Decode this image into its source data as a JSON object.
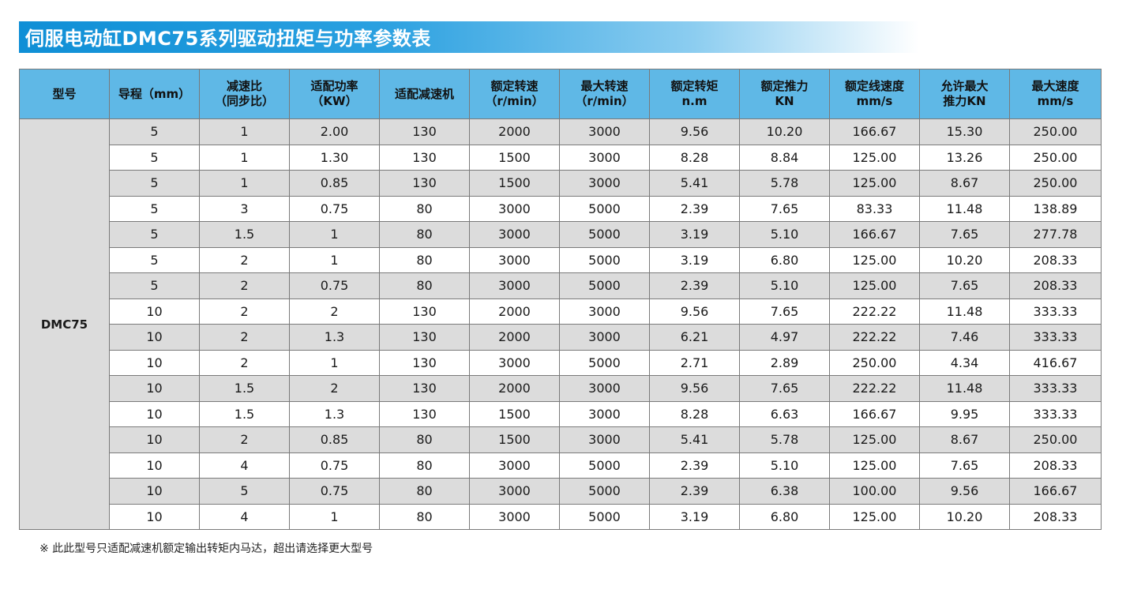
{
  "title": "伺服电动缸DMC75系列驱动扭矩与功率参数表",
  "headers": [
    [
      "型号"
    ],
    [
      "导程（mm）"
    ],
    [
      "减速比",
      "（同步比）"
    ],
    [
      "适配功率",
      "（KW）"
    ],
    [
      "适配减速机"
    ],
    [
      "额定转速",
      "（r/min）"
    ],
    [
      "最大转速",
      "（r/min）"
    ],
    [
      "额定转矩",
      "n.m"
    ],
    [
      "额定推力",
      "KN"
    ],
    [
      "额定线速度",
      "mm/s"
    ],
    [
      "允许最大",
      "推力KN"
    ],
    [
      "最大速度",
      "mm/s"
    ]
  ],
  "model": "DMC75",
  "rows": [
    [
      "5",
      "1",
      "2.00",
      "130",
      "2000",
      "3000",
      "9.56",
      "10.20",
      "166.67",
      "15.30",
      "250.00"
    ],
    [
      "5",
      "1",
      "1.30",
      "130",
      "1500",
      "3000",
      "8.28",
      "8.84",
      "125.00",
      "13.26",
      "250.00"
    ],
    [
      "5",
      "1",
      "0.85",
      "130",
      "1500",
      "3000",
      "5.41",
      "5.78",
      "125.00",
      "8.67",
      "250.00"
    ],
    [
      "5",
      "3",
      "0.75",
      "80",
      "3000",
      "5000",
      "2.39",
      "7.65",
      "83.33",
      "11.48",
      "138.89"
    ],
    [
      "5",
      "1.5",
      "1",
      "80",
      "3000",
      "5000",
      "3.19",
      "5.10",
      "166.67",
      "7.65",
      "277.78"
    ],
    [
      "5",
      "2",
      "1",
      "80",
      "3000",
      "5000",
      "3.19",
      "6.80",
      "125.00",
      "10.20",
      "208.33"
    ],
    [
      "5",
      "2",
      "0.75",
      "80",
      "3000",
      "5000",
      "2.39",
      "5.10",
      "125.00",
      "7.65",
      "208.33"
    ],
    [
      "10",
      "2",
      "2",
      "130",
      "2000",
      "3000",
      "9.56",
      "7.65",
      "222.22",
      "11.48",
      "333.33"
    ],
    [
      "10",
      "2",
      "1.3",
      "130",
      "2000",
      "3000",
      "6.21",
      "4.97",
      "222.22",
      "7.46",
      "333.33"
    ],
    [
      "10",
      "2",
      "1",
      "130",
      "3000",
      "5000",
      "2.71",
      "2.89",
      "250.00",
      "4.34",
      "416.67"
    ],
    [
      "10",
      "1.5",
      "2",
      "130",
      "2000",
      "3000",
      "9.56",
      "7.65",
      "222.22",
      "11.48",
      "333.33"
    ],
    [
      "10",
      "1.5",
      "1.3",
      "130",
      "1500",
      "3000",
      "8.28",
      "6.63",
      "166.67",
      "9.95",
      "333.33"
    ],
    [
      "10",
      "2",
      "0.85",
      "80",
      "1500",
      "3000",
      "5.41",
      "5.78",
      "125.00",
      "8.67",
      "250.00"
    ],
    [
      "10",
      "4",
      "0.75",
      "80",
      "3000",
      "5000",
      "2.39",
      "5.10",
      "125.00",
      "7.65",
      "208.33"
    ],
    [
      "10",
      "5",
      "0.75",
      "80",
      "3000",
      "5000",
      "2.39",
      "6.38",
      "100.00",
      "9.56",
      "166.67"
    ],
    [
      "10",
      "4",
      "1",
      "80",
      "3000",
      "5000",
      "3.19",
      "6.80",
      "125.00",
      "10.20",
      "208.33"
    ]
  ],
  "footnote": "※ 此此型号只适配减速机额定输出转矩内马达，超出请选择更大型号",
  "colors": {
    "title_bar": "#0f8fd6",
    "header_bg": "#5fb8e6",
    "row_alt": "#dcdcdc",
    "border": "#7a7a7a"
  }
}
